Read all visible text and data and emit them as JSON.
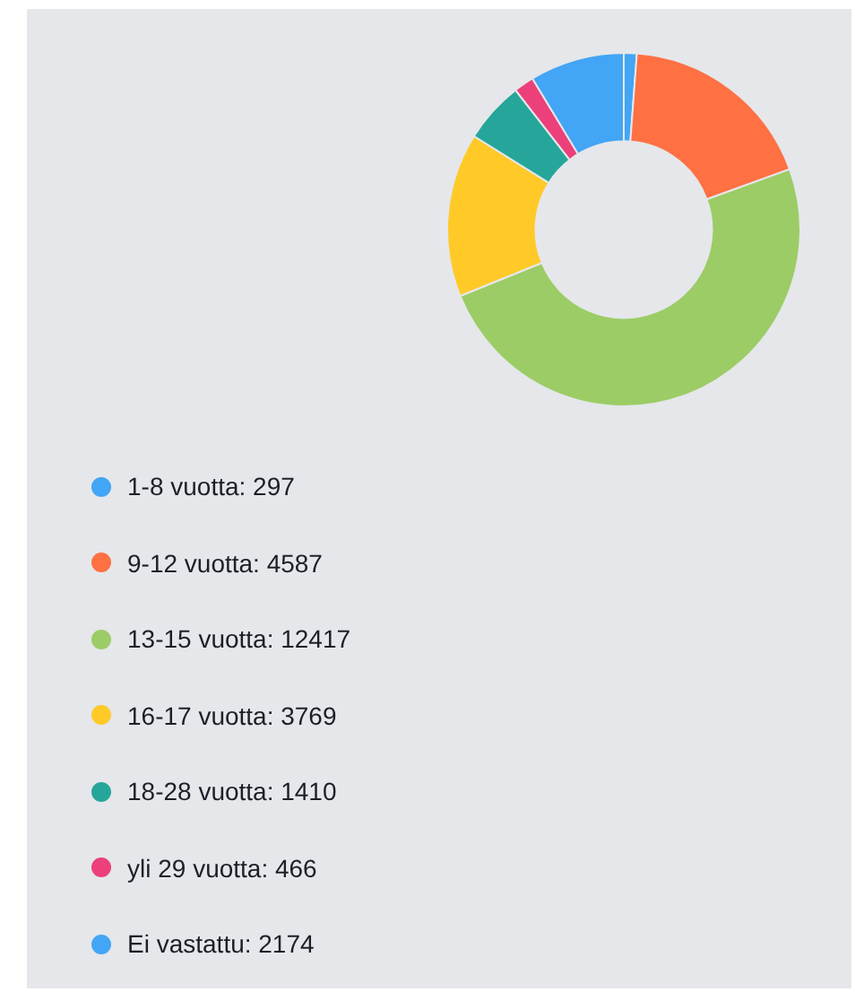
{
  "chart_data": {
    "type": "donut",
    "categories": [
      "1-8 vuotta: 297",
      "9-12 vuotta: 4587",
      "13-15 vuotta: 12417",
      "16-17 vuotta: 3769",
      "18-28 vuotta: 1410",
      "yli 29 vuotta: 466",
      "Ei vastattu: 2174"
    ],
    "values": [
      297,
      4587,
      12417,
      3769,
      1410,
      466,
      2174
    ],
    "colors": [
      "#42a5f5",
      "#ff7043",
      "#9ccc65",
      "#ffca28",
      "#26a69a",
      "#ec407a",
      "#42a5f5"
    ],
    "legend": "bottom left"
  }
}
